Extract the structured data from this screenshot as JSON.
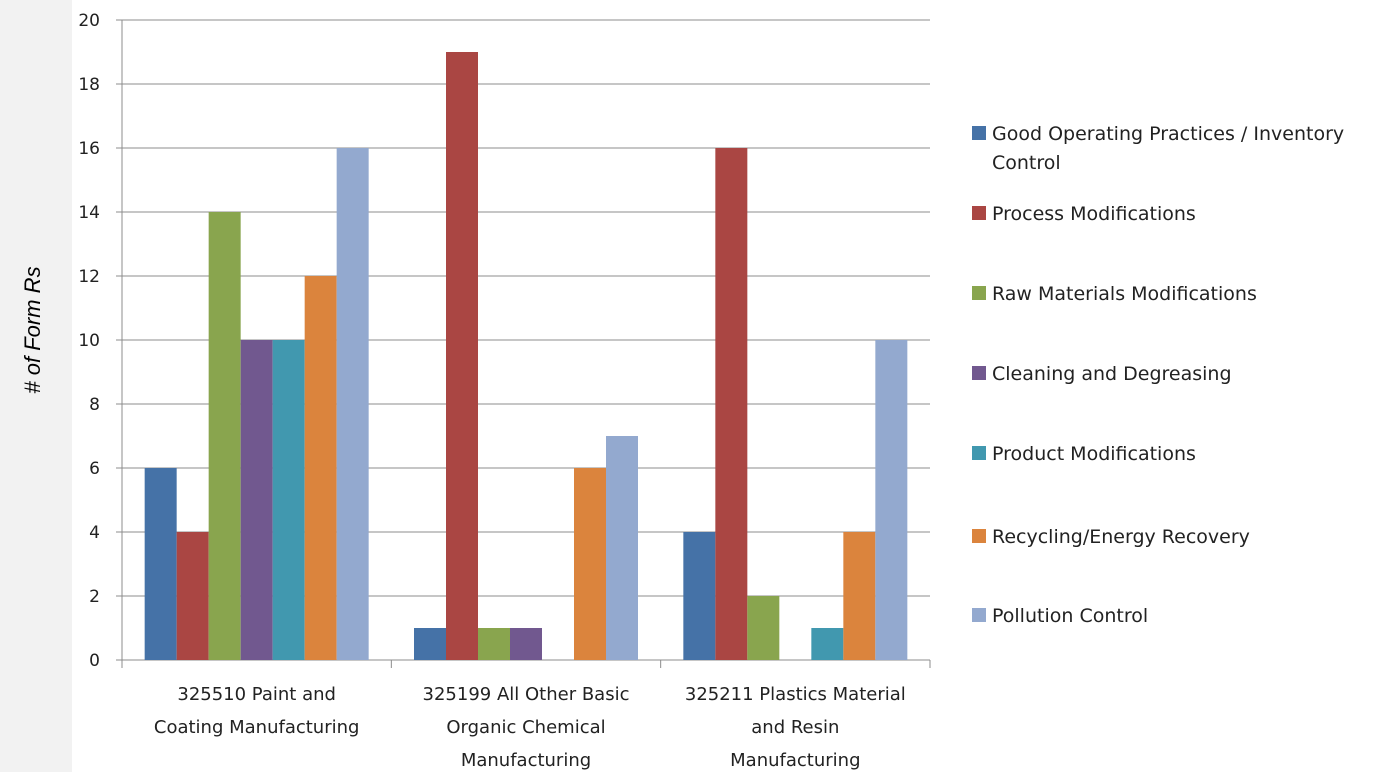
{
  "chart_data": {
    "type": "bar",
    "ylabel": "# of Form Rs",
    "xlabel": "",
    "ylim": [
      0,
      20
    ],
    "yticks": [
      "0",
      "2",
      "4",
      "6",
      "8",
      "10",
      "12",
      "14",
      "16",
      "18",
      "20"
    ],
    "grid": true,
    "legend_position": "right",
    "categories": [
      [
        "325510 Paint and",
        "Coating Manufacturing"
      ],
      [
        "325199 All Other Basic",
        "Organic Chemical",
        "Manufacturing"
      ],
      [
        "325211 Plastics Material",
        "and Resin",
        "Manufacturing"
      ]
    ],
    "series": [
      {
        "name": "Good Operating Practices / Inventory Control",
        "color": "#4572a7",
        "values": [
          6,
          1,
          4
        ]
      },
      {
        "name": "Process Modifications",
        "color": "#aa4643",
        "values": [
          4,
          19,
          16
        ]
      },
      {
        "name": "Raw Materials Modifications",
        "color": "#89a54e",
        "values": [
          14,
          1,
          2
        ]
      },
      {
        "name": "Cleaning and Degreasing",
        "color": "#71588f",
        "values": [
          10,
          1,
          0
        ]
      },
      {
        "name": "Product Modifications",
        "color": "#4198af",
        "values": [
          10,
          0,
          1
        ]
      },
      {
        "name": "Recycling/Energy Recovery",
        "color": "#db843d",
        "values": [
          12,
          6,
          4
        ]
      },
      {
        "name": "Pollution Control",
        "color": "#93a9cf",
        "values": [
          16,
          7,
          10
        ]
      }
    ]
  }
}
